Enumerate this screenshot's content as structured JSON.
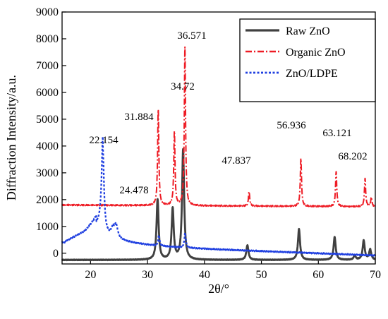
{
  "chart_data": {
    "type": "line",
    "xlabel": "2θ/°",
    "ylabel": "Diffraction Intensity/a.u.",
    "xlim": [
      15,
      70
    ],
    "ylim": [
      -400,
      9000
    ],
    "xticks": [
      20,
      30,
      40,
      50,
      60,
      70
    ],
    "yticks": [
      0,
      1000,
      2000,
      3000,
      4000,
      5000,
      6000,
      7000,
      8000,
      9000
    ],
    "grid": false,
    "legend_position": "top-right",
    "series": [
      {
        "name": "Raw ZnO",
        "color": "#404040",
        "style": "solid",
        "baseline": -250,
        "peaks": [
          [
            31.77,
            2250
          ],
          [
            34.42,
            1900
          ],
          [
            36.25,
            4100
          ],
          [
            47.54,
            550
          ],
          [
            56.6,
            1150
          ],
          [
            62.86,
            850
          ],
          [
            66.38,
            150
          ],
          [
            67.96,
            720
          ],
          [
            69.1,
            380
          ]
        ]
      },
      {
        "name": "Organic ZnO",
        "color": "#ee1c25",
        "style": "dashdot",
        "baseline": 1800,
        "peaks": [
          [
            31.884,
            3600
          ],
          [
            34.72,
            2750
          ],
          [
            36.571,
            5900
          ],
          [
            47.837,
            550
          ],
          [
            56.936,
            1800
          ],
          [
            63.121,
            1300
          ],
          [
            68.202,
            1050
          ],
          [
            69.3,
            350
          ]
        ]
      },
      {
        "name": "ZnO/LDPE",
        "color": "#1f3fe0",
        "style": "dotted",
        "peaks": [
          [
            22.154,
            3750
          ],
          [
            24.478,
            1050
          ],
          [
            32.0,
            700
          ],
          [
            36.6,
            850
          ]
        ]
      }
    ],
    "annotations": [
      "22.154",
      "24.478",
      "31.884",
      "34.72",
      "36.571",
      "47.837",
      "56.936",
      "63.121",
      "68.202"
    ]
  }
}
